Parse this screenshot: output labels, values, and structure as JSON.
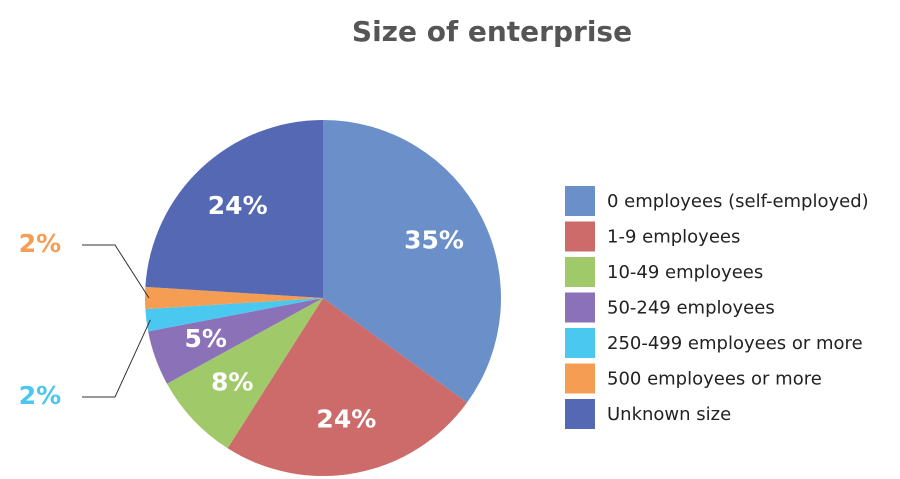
{
  "chart_data": {
    "type": "pie",
    "title": "Size of enterprise",
    "categories": [
      "0 employees (self-employed)",
      "1-9 employees",
      "10-49 employees",
      "50-249 employees",
      "250-499 employees or more",
      "500 employees or more",
      "Unknown size"
    ],
    "values": [
      35,
      24,
      8,
      5,
      2,
      2,
      24
    ],
    "value_labels": [
      "35%",
      "24%",
      "8%",
      "5%",
      "2%",
      "2%",
      "24%"
    ],
    "colors": [
      "#6a8fc9",
      "#cd6b6b",
      "#a0c96a",
      "#8b72b8",
      "#4ac8ef",
      "#f59d52",
      "#5468b4"
    ]
  }
}
